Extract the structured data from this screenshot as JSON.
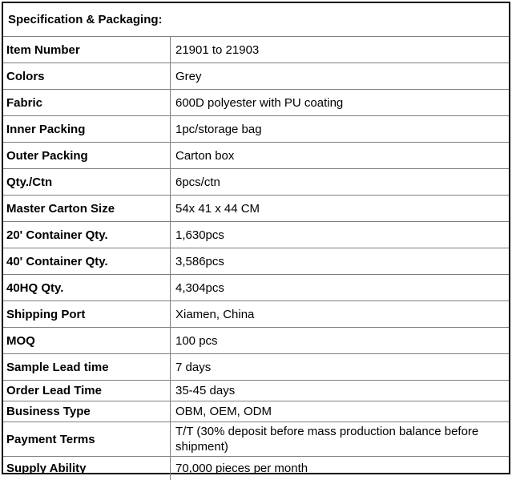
{
  "title": "Specification & Packaging:",
  "rows": [
    {
      "label": "Item Number",
      "value": "21901 to 21903"
    },
    {
      "label": "Colors",
      "value": "Grey"
    },
    {
      "label": "Fabric",
      "value": "600D polyester with PU coating"
    },
    {
      "label": "Inner Packing",
      "value": "1pc/storage bag"
    },
    {
      "label": "Outer Packing",
      "value": "Carton box"
    },
    {
      "label": "Qty./Ctn",
      "value": "6pcs/ctn"
    },
    {
      "label": "Master Carton Size",
      "value": "54x 41 x 44 CM"
    },
    {
      "label": "20' Container Qty.",
      "value": "1,630pcs"
    },
    {
      "label": "40' Container Qty.",
      "value": "3,586pcs"
    },
    {
      "label": "40HQ Qty.",
      "value": "4,304pcs"
    },
    {
      "label": "Shipping Port",
      "value": "Xiamen, China"
    },
    {
      "label": "MOQ",
      "value": "100 pcs"
    },
    {
      "label": "Sample Lead time",
      "value": "7 days"
    },
    {
      "label": "Order Lead Time",
      "value": "35-45 days"
    },
    {
      "label": "Business Type",
      "value": "OBM, OEM, ODM"
    },
    {
      "label": "Payment Terms",
      "value": "T/T (30% deposit before mass production balance before shipment)"
    },
    {
      "label": "Supply Ability",
      "value": "70,000 pieces per month"
    }
  ]
}
